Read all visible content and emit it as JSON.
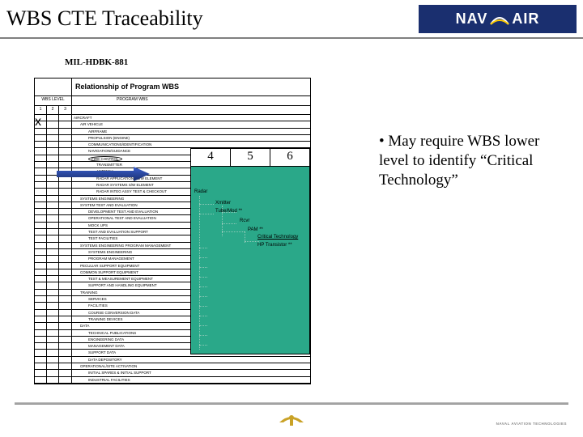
{
  "title": "WBS CTE Traceability",
  "logo_text_left": "NAV",
  "logo_text_right": "AIR",
  "doc_ref": "MIL-HDBK-881",
  "table_header": "Relationship of Program WBS",
  "table_sub": "PROGRAM WBS",
  "levels_label": "WBS LEVEL",
  "levels": [
    "1",
    "2",
    "3"
  ],
  "rows": [
    {
      "i": 1,
      "t": "AIRCRAFT"
    },
    {
      "i": 2,
      "t": "AIR VEHICLE"
    },
    {
      "i": 3,
      "t": "AIRFRAME"
    },
    {
      "i": 3,
      "t": "PROPULSION (ENGINE)"
    },
    {
      "i": 3,
      "t": "COMMUNICATIONS/IDENTIFICATION"
    },
    {
      "i": 3,
      "t": "NAVIGATION/GUIDANCE"
    },
    {
      "i": 3,
      "t": "FIRE CONTROL",
      "circled": true
    },
    {
      "i": 4,
      "t": "TRANSMITTER"
    },
    {
      "i": 4,
      "t": "ANTENNA"
    },
    {
      "i": 4,
      "t": "RADAR APPLICATIONS S/W ELEMENT"
    },
    {
      "i": 4,
      "t": "RADAR SYSTEMS S/W ELEMENT"
    },
    {
      "i": 4,
      "t": "RADAR INTEG ASSY TEST & CHECKOUT"
    },
    {
      "i": 2,
      "t": "SYSTEMS ENGINEERING"
    },
    {
      "i": 2,
      "t": "SYSTEM TEST AND EVALUATION"
    },
    {
      "i": 3,
      "t": "DEVELOPMENT TEST AND EVALUATION"
    },
    {
      "i": 3,
      "t": "OPERATIONAL TEST AND EVALUATION"
    },
    {
      "i": 3,
      "t": "MOCK UPS"
    },
    {
      "i": 3,
      "t": "TEST AND EVALUATION SUPPORT"
    },
    {
      "i": 3,
      "t": "TEST FACILITIES"
    },
    {
      "i": 2,
      "t": "SYSTEMS ENGINEERING PROGRAM MANAGEMENT"
    },
    {
      "i": 3,
      "t": "SYSTEMS ENGINEERING"
    },
    {
      "i": 3,
      "t": "PROGRAM MANAGEMENT"
    },
    {
      "i": 2,
      "t": "PECULIAR SUPPORT EQUIPMENT"
    },
    {
      "i": 2,
      "t": "COMMON SUPPORT EQUIPMENT"
    },
    {
      "i": 3,
      "t": "TEST & MEASUREMENT EQUIPMENT"
    },
    {
      "i": 3,
      "t": "SUPPORT AND HANDLING EQUIPMENT"
    },
    {
      "i": 2,
      "t": "TRAINING"
    },
    {
      "i": 3,
      "t": "SERVICES"
    },
    {
      "i": 3,
      "t": "FACILITIES"
    },
    {
      "i": 3,
      "t": "COURSE CONVERSION DATA"
    },
    {
      "i": 3,
      "t": "TRAINING DEVICES"
    },
    {
      "i": 2,
      "t": "DATA"
    },
    {
      "i": 3,
      "t": "TECHNICAL PUBLICATIONS"
    },
    {
      "i": 3,
      "t": "ENGINEERING DATA"
    },
    {
      "i": 3,
      "t": "MANAGEMENT DATA"
    },
    {
      "i": 3,
      "t": "SUPPORT DATA"
    },
    {
      "i": 3,
      "t": "DATA DEPOSITORY"
    },
    {
      "i": 2,
      "t": "OPERATIONAL/SITE ACTIVATION"
    },
    {
      "i": 3,
      "t": "INITIAL SPARES & INITIAL SUPPORT"
    },
    {
      "i": 3,
      "t": "INDUSTRIAL FACILITIES"
    }
  ],
  "green_levels": [
    "4",
    "5",
    "6"
  ],
  "detail": {
    "radar": "Radar",
    "xmitter": "Xmitter",
    "tube": "Tube/Mod **",
    "rcvr": "Rcvr",
    "pam": "PAM **",
    "crit": "Critical Technology",
    "hp": "HP Transistor **"
  },
  "bullet": "• May require WBS lower level to identify “Critical Technology”",
  "footer_tag": "NAVAL AVIATION TECHNOLOGIES",
  "colors": {
    "logo_bg": "#1a2f6f",
    "green_bg": "#2aa889"
  }
}
